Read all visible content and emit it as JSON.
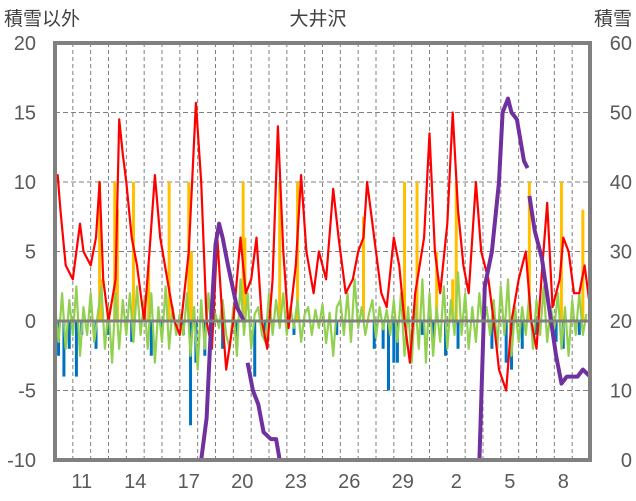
{
  "chart_data": {
    "type": "line",
    "title": "大井沢",
    "ylabel_left": "積雪以外",
    "ylabel_right": "積雪",
    "ylim_left": [
      -10,
      20
    ],
    "ylim_right": [
      0,
      60
    ],
    "yticks_left": [
      "20",
      "15",
      "10",
      "5",
      "0",
      "-5",
      "-10"
    ],
    "yticks_right": [
      "60",
      "50",
      "40",
      "30",
      "20",
      "10",
      "0"
    ],
    "x_range_days": [
      0,
      30
    ],
    "x_tick_labels": [
      {
        "day": 1,
        "label": "11"
      },
      {
        "day": 4,
        "label": "14"
      },
      {
        "day": 7,
        "label": "17"
      },
      {
        "day": 10,
        "label": "20"
      },
      {
        "day": 13,
        "label": "23"
      },
      {
        "day": 16,
        "label": "26"
      },
      {
        "day": 19,
        "label": "29"
      },
      {
        "day": 22,
        "label": "2"
      },
      {
        "day": 25,
        "label": "5"
      },
      {
        "day": 28,
        "label": "8"
      }
    ],
    "grid": true,
    "colors": {
      "red": "#ff0000",
      "purple": "#7030a0",
      "green": "#92d050",
      "blue": "#0070c0",
      "orange": "#ffc000"
    },
    "series": [
      {
        "name": "red",
        "axis": "left",
        "color": "#ff0000",
        "points": [
          [
            0,
            10
          ],
          [
            0.15,
            10.5
          ],
          [
            0.3,
            8
          ],
          [
            0.6,
            4
          ],
          [
            1,
            3
          ],
          [
            1.4,
            7
          ],
          [
            1.6,
            5
          ],
          [
            2,
            4
          ],
          [
            2.3,
            6
          ],
          [
            2.5,
            10
          ],
          [
            2.7,
            3
          ],
          [
            3,
            0
          ],
          [
            3.4,
            3
          ],
          [
            3.6,
            14.5
          ],
          [
            3.8,
            12
          ],
          [
            4,
            10
          ],
          [
            4.3,
            6
          ],
          [
            4.6,
            4
          ],
          [
            5,
            0
          ],
          [
            5.3,
            5
          ],
          [
            5.6,
            10.5
          ],
          [
            5.9,
            6
          ],
          [
            6.3,
            3
          ],
          [
            6.7,
            0
          ],
          [
            7,
            -1
          ],
          [
            7.5,
            5
          ],
          [
            7.9,
            15.7
          ],
          [
            8.2,
            10
          ],
          [
            8.5,
            0
          ],
          [
            8.8,
            -2
          ],
          [
            9.1,
            6
          ],
          [
            9.4,
            0
          ],
          [
            9.6,
            -3.5
          ],
          [
            10,
            0
          ],
          [
            10.4,
            6
          ],
          [
            10.7,
            2
          ],
          [
            11,
            3
          ],
          [
            11.3,
            6
          ],
          [
            11.6,
            0
          ],
          [
            11.9,
            -2
          ],
          [
            12.2,
            3
          ],
          [
            12.5,
            14
          ],
          [
            12.8,
            5
          ],
          [
            13.1,
            -0.5
          ],
          [
            13.5,
            4
          ],
          [
            13.8,
            10.5
          ],
          [
            14.1,
            5
          ],
          [
            14.5,
            2
          ],
          [
            14.8,
            5
          ],
          [
            15.2,
            3
          ],
          [
            15.6,
            9.5
          ],
          [
            15.9,
            6
          ],
          [
            16.3,
            2
          ],
          [
            16.7,
            3
          ],
          [
            17,
            5
          ],
          [
            17.3,
            6
          ],
          [
            17.5,
            10
          ],
          [
            17.9,
            6
          ],
          [
            18.3,
            2
          ],
          [
            18.6,
            1
          ],
          [
            19,
            6
          ],
          [
            19.3,
            4
          ],
          [
            19.6,
            0
          ],
          [
            19.9,
            -3
          ],
          [
            20.2,
            2
          ],
          [
            20.7,
            6
          ],
          [
            21,
            13.5
          ],
          [
            21.3,
            5
          ],
          [
            21.6,
            2
          ],
          [
            22,
            7
          ],
          [
            22.3,
            15
          ],
          [
            22.6,
            8
          ],
          [
            22.9,
            4
          ],
          [
            23.2,
            2
          ],
          [
            23.6,
            10
          ],
          [
            23.9,
            5
          ],
          [
            24.3,
            3
          ],
          [
            24.6,
            0
          ],
          [
            24.9,
            -3.5
          ],
          [
            25.3,
            -5
          ],
          [
            25.6,
            0
          ],
          [
            26,
            3
          ],
          [
            26.4,
            5
          ],
          [
            26.7,
            0
          ],
          [
            27,
            -2
          ],
          [
            27.3,
            3.5
          ],
          [
            27.6,
            8.5
          ],
          [
            27.9,
            1
          ],
          [
            28.3,
            3
          ],
          [
            28.5,
            6
          ],
          [
            28.8,
            5
          ],
          [
            29.1,
            2
          ],
          [
            29.4,
            2
          ],
          [
            29.7,
            4
          ],
          [
            30,
            1
          ]
        ]
      },
      {
        "name": "purple",
        "axis": "right",
        "color": "#7030a0",
        "points": [
          [
            0,
            0
          ],
          [
            8.2,
            0
          ],
          [
            8.5,
            6
          ],
          [
            8.8,
            22
          ],
          [
            9.0,
            31
          ],
          [
            9.2,
            34
          ],
          [
            9.4,
            32
          ],
          [
            9.7,
            28
          ],
          [
            10.2,
            22
          ],
          [
            10.6,
            20
          ],
          [
            null,
            null
          ],
          [
            10.8,
            14
          ],
          [
            11.1,
            10
          ],
          [
            11.4,
            8
          ],
          [
            11.7,
            4
          ],
          [
            12.1,
            3
          ],
          [
            12.4,
            3
          ],
          [
            12.6,
            0
          ],
          [
            23.8,
            0
          ],
          [
            24.1,
            25
          ],
          [
            24.5,
            30
          ],
          [
            24.9,
            40
          ],
          [
            25.1,
            50
          ],
          [
            25.4,
            52
          ],
          [
            25.6,
            50
          ],
          [
            25.9,
            49
          ],
          [
            26.3,
            43
          ],
          [
            26.5,
            42
          ],
          [
            null,
            null
          ],
          [
            26.6,
            38
          ],
          [
            26.9,
            33
          ],
          [
            27.3,
            29
          ],
          [
            27.7,
            22
          ],
          [
            28.1,
            15
          ],
          [
            28.4,
            11
          ],
          [
            28.7,
            12
          ],
          [
            29.3,
            12
          ],
          [
            29.6,
            13
          ],
          [
            30,
            12
          ]
        ]
      },
      {
        "name": "green",
        "axis": "left",
        "color": "#92d050",
        "step_days": 0.2,
        "values": [
          1,
          -1.5,
          2,
          -2,
          1.5,
          -1,
          2.5,
          -2.5,
          1,
          -1,
          2,
          -1.5,
          0.5,
          2.5,
          -2,
          1,
          -3,
          2,
          -2,
          1.5,
          -1,
          2,
          -1.5,
          2.5,
          -1,
          1.5,
          -2,
          2,
          -3,
          1,
          -1.5,
          2.5,
          -2,
          1,
          -1,
          0.5,
          -1,
          2,
          -2.5,
          1,
          -3.5,
          1.5,
          -2,
          2,
          -1,
          0.5,
          -0.5,
          1.5,
          -1,
          -2,
          1,
          -2.5,
          3,
          -1,
          2,
          -2,
          0.5,
          1,
          -1,
          -1.5,
          2,
          -1,
          1.5,
          -0.5,
          2,
          -1,
          1,
          -0.5,
          1.5,
          -1.5,
          0.5,
          1,
          -1,
          0.8,
          -0.5,
          1.2,
          -1.6,
          0.6,
          -2.5,
          1,
          1.5,
          -1,
          2,
          -1.5,
          3,
          -0.5,
          1,
          -1,
          0.5,
          1.5,
          -1.2,
          1,
          -0.6,
          0.8,
          -1,
          1.5,
          -1.5,
          2,
          -2.5,
          1,
          -3,
          1.5,
          -2,
          3,
          -3,
          2,
          -2.5,
          1,
          -1.5,
          2.5,
          -2,
          1.5,
          -1,
          3.5,
          -1,
          2,
          -2,
          1,
          -1.5,
          2,
          -0.5,
          1,
          -1,
          1.5,
          -2,
          2.5,
          -1,
          3,
          -2.5,
          1,
          -1.5,
          1,
          -1,
          2,
          -2,
          1.5,
          -1,
          2.5,
          -1.5,
          1,
          -0.5,
          2,
          -2,
          1,
          -2.5,
          1.5,
          -1,
          2,
          -1,
          0.5
        ]
      },
      {
        "name": "orange",
        "axis": "left",
        "color": "#ffc000",
        "type": "bar",
        "bars": [
          [
            2.5,
            10
          ],
          [
            2.6,
            3
          ],
          [
            3.35,
            10
          ],
          [
            3.5,
            8
          ],
          [
            4.4,
            10
          ],
          [
            5.25,
            4
          ],
          [
            6.4,
            10
          ],
          [
            7.5,
            10
          ],
          [
            7.65,
            5
          ],
          [
            10.55,
            10
          ],
          [
            10.65,
            6
          ],
          [
            12.6,
            10
          ],
          [
            13.6,
            10
          ],
          [
            17.3,
            7.5
          ],
          [
            19.6,
            10
          ],
          [
            20.3,
            10
          ],
          [
            21.4,
            5
          ],
          [
            22.3,
            3
          ],
          [
            22.5,
            10
          ],
          [
            26.6,
            10
          ],
          [
            28.4,
            10
          ],
          [
            29.6,
            8
          ]
        ]
      },
      {
        "name": "blue",
        "axis": "left",
        "color": "#0070c0",
        "type": "bar",
        "bars": [
          [
            0.2,
            -2.5
          ],
          [
            0.5,
            -4
          ],
          [
            0.8,
            -2
          ],
          [
            1.2,
            -4
          ],
          [
            1.5,
            -1
          ],
          [
            2.3,
            -2
          ],
          [
            3,
            -1
          ],
          [
            4.3,
            -1.5
          ],
          [
            5.4,
            -2.5
          ],
          [
            6,
            -1
          ],
          [
            7.2,
            -1
          ],
          [
            7.6,
            -7.5
          ],
          [
            7.9,
            -3
          ],
          [
            8.4,
            -2.5
          ],
          [
            9.4,
            -2
          ],
          [
            10.2,
            -1.5
          ],
          [
            11.2,
            -4
          ],
          [
            11.8,
            -1.5
          ],
          [
            13.4,
            -1
          ],
          [
            15.8,
            -1
          ],
          [
            17.9,
            -2
          ],
          [
            18.4,
            -2
          ],
          [
            18.7,
            -5
          ],
          [
            19,
            -3
          ],
          [
            19.2,
            -3
          ],
          [
            20.6,
            -1
          ],
          [
            21.2,
            -2
          ],
          [
            21.9,
            -2.5
          ],
          [
            22.6,
            -2
          ],
          [
            24.5,
            -2
          ],
          [
            25.3,
            -3
          ],
          [
            25.6,
            -3.5
          ],
          [
            26.2,
            -2
          ],
          [
            27,
            -1
          ],
          [
            28.1,
            -1.5
          ],
          [
            28.5,
            -2
          ],
          [
            29.4,
            -1
          ]
        ]
      }
    ]
  }
}
